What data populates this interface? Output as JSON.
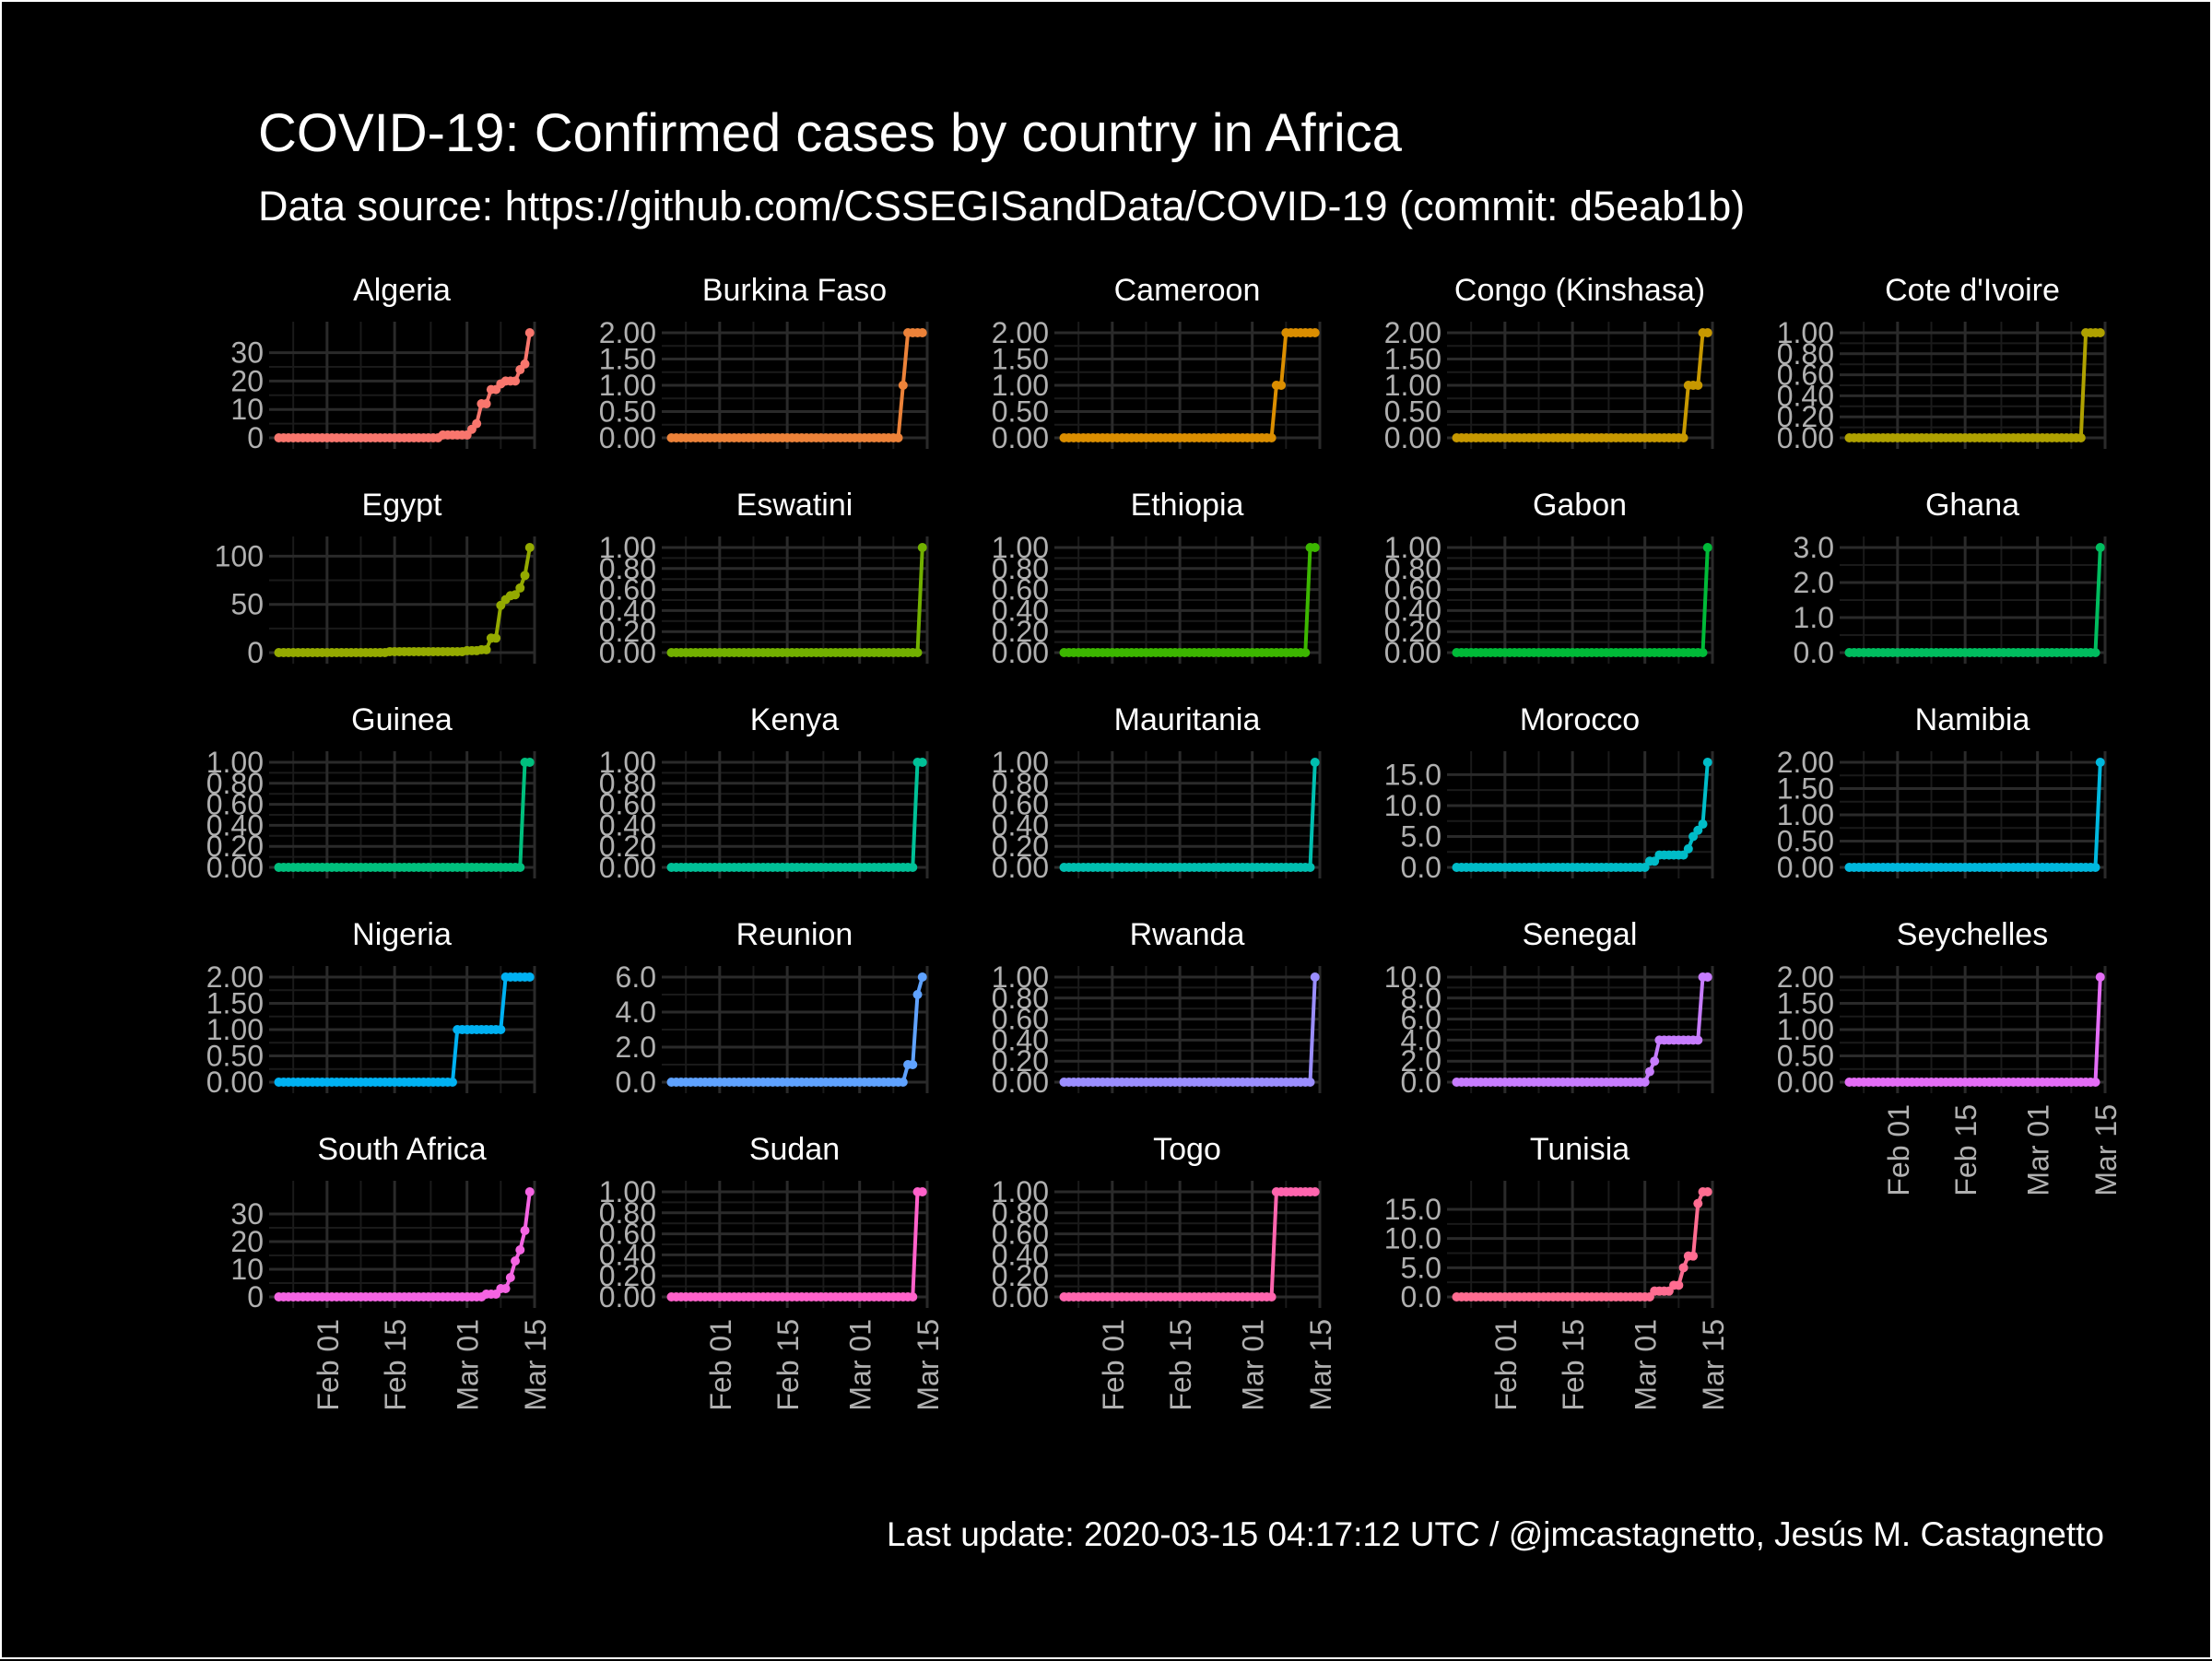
{
  "chart_data": {
    "type": "line",
    "title": "COVID-19: Confirmed cases by country in Africa",
    "subtitle": "Data source: https://github.com/CSSEGISandData/COVID-19 (commit: d5eab1b)",
    "caption": "Last update:  2020-03-15 04:17:12 UTC / @jmcastagnetto, Jesús M. Castagnetto",
    "x_start": "2020-01-22",
    "x_end": "2020-03-14",
    "xlim": [
      "2020-01-20",
      "2020-03-15"
    ],
    "x_ticks": [
      {
        "date": "2020-02-01",
        "label": "Feb 01"
      },
      {
        "date": "2020-02-15",
        "label": "Feb 15"
      },
      {
        "date": "2020-03-01",
        "label": "Mar 01"
      },
      {
        "date": "2020-03-15",
        "label": "Mar 15"
      }
    ],
    "grid": true,
    "legend": "none",
    "panels": [
      {
        "name": "Algeria",
        "color": "#F8766D",
        "ylim": [
          0,
          37
        ],
        "yticks": [
          0,
          10,
          20,
          30
        ],
        "ytick_labels": [
          "0",
          "10",
          "20",
          "30"
        ],
        "points": [
          [
            "2020-02-25",
            1
          ],
          [
            "2020-03-02",
            3
          ],
          [
            "2020-03-03",
            5
          ],
          [
            "2020-03-04",
            12
          ],
          [
            "2020-03-05",
            12
          ],
          [
            "2020-03-06",
            17
          ],
          [
            "2020-03-07",
            17
          ],
          [
            "2020-03-08",
            19
          ],
          [
            "2020-03-09",
            20
          ],
          [
            "2020-03-10",
            20
          ],
          [
            "2020-03-11",
            20
          ],
          [
            "2020-03-12",
            24
          ],
          [
            "2020-03-13",
            26
          ],
          [
            "2020-03-14",
            37
          ]
        ]
      },
      {
        "name": "Burkina Faso",
        "color": "#EC8239",
        "ylim": [
          0,
          2
        ],
        "yticks": [
          0,
          0.5,
          1,
          1.5,
          2
        ],
        "ytick_labels": [
          "0.00",
          "0.50",
          "1.00",
          "1.50",
          "2.00"
        ],
        "points": [
          [
            "2020-03-10",
            1
          ],
          [
            "2020-03-11",
            2
          ],
          [
            "2020-03-12",
            2
          ],
          [
            "2020-03-13",
            2
          ],
          [
            "2020-03-14",
            2
          ]
        ]
      },
      {
        "name": "Cameroon",
        "color": "#DB8E00",
        "ylim": [
          0,
          2
        ],
        "yticks": [
          0,
          0.5,
          1,
          1.5,
          2
        ],
        "ytick_labels": [
          "0.00",
          "0.50",
          "1.00",
          "1.50",
          "2.00"
        ],
        "points": [
          [
            "2020-03-06",
            1
          ],
          [
            "2020-03-07",
            1
          ],
          [
            "2020-03-08",
            2
          ],
          [
            "2020-03-09",
            2
          ],
          [
            "2020-03-10",
            2
          ],
          [
            "2020-03-11",
            2
          ],
          [
            "2020-03-12",
            2
          ],
          [
            "2020-03-13",
            2
          ],
          [
            "2020-03-14",
            2
          ]
        ]
      },
      {
        "name": "Congo (Kinshasa)",
        "color": "#C79800",
        "ylim": [
          0,
          2
        ],
        "yticks": [
          0,
          0.5,
          1,
          1.5,
          2
        ],
        "ytick_labels": [
          "0.00",
          "0.50",
          "1.00",
          "1.50",
          "2.00"
        ],
        "points": [
          [
            "2020-03-10",
            1
          ],
          [
            "2020-03-11",
            1
          ],
          [
            "2020-03-12",
            1
          ],
          [
            "2020-03-13",
            2
          ],
          [
            "2020-03-14",
            2
          ]
        ]
      },
      {
        "name": "Cote d'Ivoire",
        "color": "#AFA100",
        "ylim": [
          0,
          1
        ],
        "yticks": [
          0,
          0.2,
          0.4,
          0.6,
          0.8,
          1
        ],
        "ytick_labels": [
          "0.00",
          "0.20",
          "0.40",
          "0.60",
          "0.80",
          "1.00"
        ],
        "points": [
          [
            "2020-03-11",
            1
          ],
          [
            "2020-03-12",
            1
          ],
          [
            "2020-03-13",
            1
          ],
          [
            "2020-03-14",
            1
          ]
        ]
      },
      {
        "name": "Egypt",
        "color": "#94AA00",
        "ylim": [
          0,
          109
        ],
        "yticks": [
          0,
          50,
          100
        ],
        "ytick_labels": [
          "0",
          "50",
          "100"
        ],
        "points": [
          [
            "2020-02-14",
            1
          ],
          [
            "2020-03-01",
            2
          ],
          [
            "2020-03-04",
            3
          ],
          [
            "2020-03-06",
            15
          ],
          [
            "2020-03-07",
            15
          ],
          [
            "2020-03-08",
            49
          ],
          [
            "2020-03-09",
            55
          ],
          [
            "2020-03-10",
            59
          ],
          [
            "2020-03-11",
            60
          ],
          [
            "2020-03-12",
            67
          ],
          [
            "2020-03-13",
            80
          ],
          [
            "2020-03-14",
            109
          ]
        ]
      },
      {
        "name": "Eswatini",
        "color": "#72B000",
        "ylim": [
          0,
          1
        ],
        "yticks": [
          0,
          0.2,
          0.4,
          0.6,
          0.8,
          1
        ],
        "ytick_labels": [
          "0.00",
          "0.20",
          "0.40",
          "0.60",
          "0.80",
          "1.00"
        ],
        "points": [
          [
            "2020-03-14",
            1
          ]
        ]
      },
      {
        "name": "Ethiopia",
        "color": "#3CB600",
        "ylim": [
          0,
          1
        ],
        "yticks": [
          0,
          0.2,
          0.4,
          0.6,
          0.8,
          1
        ],
        "ytick_labels": [
          "0.00",
          "0.20",
          "0.40",
          "0.60",
          "0.80",
          "1.00"
        ],
        "points": [
          [
            "2020-03-13",
            1
          ],
          [
            "2020-03-14",
            1
          ]
        ]
      },
      {
        "name": "Gabon",
        "color": "#00BA38",
        "ylim": [
          0,
          1
        ],
        "yticks": [
          0,
          0.2,
          0.4,
          0.6,
          0.8,
          1
        ],
        "ytick_labels": [
          "0.00",
          "0.20",
          "0.40",
          "0.60",
          "0.80",
          "1.00"
        ],
        "points": [
          [
            "2020-03-14",
            1
          ]
        ]
      },
      {
        "name": "Ghana",
        "color": "#00BD5F",
        "ylim": [
          0,
          3
        ],
        "yticks": [
          0,
          1,
          2,
          3
        ],
        "ytick_labels": [
          "0.0",
          "1.0",
          "2.0",
          "3.0"
        ],
        "points": [
          [
            "2020-03-14",
            3
          ]
        ]
      },
      {
        "name": "Guinea",
        "color": "#00BF7D",
        "ylim": [
          0,
          1
        ],
        "yticks": [
          0,
          0.2,
          0.4,
          0.6,
          0.8,
          1
        ],
        "ytick_labels": [
          "0.00",
          "0.20",
          "0.40",
          "0.60",
          "0.80",
          "1.00"
        ],
        "points": [
          [
            "2020-03-13",
            1
          ],
          [
            "2020-03-14",
            1
          ]
        ]
      },
      {
        "name": "Kenya",
        "color": "#00C097",
        "ylim": [
          0,
          1
        ],
        "yticks": [
          0,
          0.2,
          0.4,
          0.6,
          0.8,
          1
        ],
        "ytick_labels": [
          "0.00",
          "0.20",
          "0.40",
          "0.60",
          "0.80",
          "1.00"
        ],
        "points": [
          [
            "2020-03-13",
            1
          ],
          [
            "2020-03-14",
            1
          ]
        ]
      },
      {
        "name": "Mauritania",
        "color": "#00BFB0",
        "ylim": [
          0,
          1
        ],
        "yticks": [
          0,
          0.2,
          0.4,
          0.6,
          0.8,
          1
        ],
        "ytick_labels": [
          "0.00",
          "0.20",
          "0.40",
          "0.60",
          "0.80",
          "1.00"
        ],
        "points": [
          [
            "2020-03-14",
            1
          ]
        ]
      },
      {
        "name": "Morocco",
        "color": "#00BCC8",
        "ylim": [
          0,
          17
        ],
        "yticks": [
          0,
          5,
          10,
          15
        ],
        "ytick_labels": [
          "0.0",
          "5.0",
          "10.0",
          "15.0"
        ],
        "points": [
          [
            "2020-03-02",
            1
          ],
          [
            "2020-03-03",
            1
          ],
          [
            "2020-03-04",
            2
          ],
          [
            "2020-03-05",
            2
          ],
          [
            "2020-03-06",
            2
          ],
          [
            "2020-03-07",
            2
          ],
          [
            "2020-03-08",
            2
          ],
          [
            "2020-03-09",
            2
          ],
          [
            "2020-03-10",
            3
          ],
          [
            "2020-03-11",
            5
          ],
          [
            "2020-03-12",
            6
          ],
          [
            "2020-03-13",
            7
          ],
          [
            "2020-03-14",
            17
          ]
        ]
      },
      {
        "name": "Namibia",
        "color": "#00B8DE",
        "ylim": [
          0,
          2
        ],
        "yticks": [
          0,
          0.5,
          1,
          1.5,
          2
        ],
        "ytick_labels": [
          "0.00",
          "0.50",
          "1.00",
          "1.50",
          "2.00"
        ],
        "points": [
          [
            "2020-03-14",
            2
          ]
        ]
      },
      {
        "name": "Nigeria",
        "color": "#00B1F2",
        "ylim": [
          0,
          2
        ],
        "yticks": [
          0,
          0.5,
          1,
          1.5,
          2
        ],
        "ytick_labels": [
          "0.00",
          "0.50",
          "1.00",
          "1.50",
          "2.00"
        ],
        "points": [
          [
            "2020-02-28",
            1
          ],
          [
            "2020-02-29",
            1
          ],
          [
            "2020-03-01",
            1
          ],
          [
            "2020-03-02",
            1
          ],
          [
            "2020-03-03",
            1
          ],
          [
            "2020-03-04",
            1
          ],
          [
            "2020-03-05",
            1
          ],
          [
            "2020-03-06",
            1
          ],
          [
            "2020-03-07",
            1
          ],
          [
            "2020-03-08",
            1
          ],
          [
            "2020-03-09",
            2
          ],
          [
            "2020-03-10",
            2
          ],
          [
            "2020-03-11",
            2
          ],
          [
            "2020-03-12",
            2
          ],
          [
            "2020-03-13",
            2
          ],
          [
            "2020-03-14",
            2
          ]
        ]
      },
      {
        "name": "Reunion",
        "color": "#5FA2FF",
        "ylim": [
          0,
          6
        ],
        "yticks": [
          0,
          2,
          4,
          6
        ],
        "ytick_labels": [
          "0.0",
          "2.0",
          "4.0",
          "6.0"
        ],
        "points": [
          [
            "2020-03-11",
            1
          ],
          [
            "2020-03-12",
            1
          ],
          [
            "2020-03-13",
            5
          ],
          [
            "2020-03-14",
            6
          ]
        ]
      },
      {
        "name": "Rwanda",
        "color": "#9B8EFF",
        "ylim": [
          0,
          1
        ],
        "yticks": [
          0,
          0.2,
          0.4,
          0.6,
          0.8,
          1
        ],
        "ytick_labels": [
          "0.00",
          "0.20",
          "0.40",
          "0.60",
          "0.80",
          "1.00"
        ],
        "points": [
          [
            "2020-03-14",
            1
          ]
        ]
      },
      {
        "name": "Senegal",
        "color": "#C77CFF",
        "ylim": [
          0,
          10
        ],
        "yticks": [
          0,
          2,
          4,
          6,
          8,
          10
        ],
        "ytick_labels": [
          "0.0",
          "2.0",
          "4.0",
          "6.0",
          "8.0",
          "10.0"
        ],
        "points": [
          [
            "2020-03-02",
            1
          ],
          [
            "2020-03-03",
            2
          ],
          [
            "2020-03-04",
            4
          ],
          [
            "2020-03-05",
            4
          ],
          [
            "2020-03-06",
            4
          ],
          [
            "2020-03-07",
            4
          ],
          [
            "2020-03-08",
            4
          ],
          [
            "2020-03-09",
            4
          ],
          [
            "2020-03-10",
            4
          ],
          [
            "2020-03-11",
            4
          ],
          [
            "2020-03-12",
            4
          ],
          [
            "2020-03-13",
            10
          ],
          [
            "2020-03-14",
            10
          ]
        ]
      },
      {
        "name": "Seychelles",
        "color": "#E46DF6",
        "ylim": [
          0,
          2
        ],
        "yticks": [
          0,
          0.5,
          1,
          1.5,
          2
        ],
        "ytick_labels": [
          "0.00",
          "0.50",
          "1.00",
          "1.50",
          "2.00"
        ],
        "points": [
          [
            "2020-03-14",
            2
          ]
        ]
      },
      {
        "name": "South Africa",
        "color": "#F564E3",
        "ylim": [
          0,
          38
        ],
        "yticks": [
          0,
          10,
          20,
          30
        ],
        "ytick_labels": [
          "0",
          "10",
          "20",
          "30"
        ],
        "points": [
          [
            "2020-03-05",
            1
          ],
          [
            "2020-03-06",
            1
          ],
          [
            "2020-03-07",
            1
          ],
          [
            "2020-03-08",
            3
          ],
          [
            "2020-03-09",
            3
          ],
          [
            "2020-03-10",
            7
          ],
          [
            "2020-03-11",
            13
          ],
          [
            "2020-03-12",
            17
          ],
          [
            "2020-03-13",
            24
          ],
          [
            "2020-03-14",
            38
          ]
        ]
      },
      {
        "name": "Sudan",
        "color": "#FF61CA",
        "ylim": [
          0,
          1
        ],
        "yticks": [
          0,
          0.2,
          0.4,
          0.6,
          0.8,
          1
        ],
        "ytick_labels": [
          "0.00",
          "0.20",
          "0.40",
          "0.60",
          "0.80",
          "1.00"
        ],
        "points": [
          [
            "2020-03-13",
            1
          ],
          [
            "2020-03-14",
            1
          ]
        ]
      },
      {
        "name": "Togo",
        "color": "#FF65AE",
        "ylim": [
          0,
          1
        ],
        "yticks": [
          0,
          0.2,
          0.4,
          0.6,
          0.8,
          1
        ],
        "ytick_labels": [
          "0.00",
          "0.20",
          "0.40",
          "0.60",
          "0.80",
          "1.00"
        ],
        "points": [
          [
            "2020-03-06",
            1
          ],
          [
            "2020-03-07",
            1
          ],
          [
            "2020-03-08",
            1
          ],
          [
            "2020-03-09",
            1
          ],
          [
            "2020-03-10",
            1
          ],
          [
            "2020-03-11",
            1
          ],
          [
            "2020-03-12",
            1
          ],
          [
            "2020-03-13",
            1
          ],
          [
            "2020-03-14",
            1
          ]
        ]
      },
      {
        "name": "Tunisia",
        "color": "#FF6C91",
        "ylim": [
          0,
          18
        ],
        "yticks": [
          0,
          5,
          10,
          15
        ],
        "ytick_labels": [
          "0.0",
          "5.0",
          "10.0",
          "15.0"
        ],
        "points": [
          [
            "2020-03-03",
            1
          ],
          [
            "2020-03-04",
            1
          ],
          [
            "2020-03-05",
            1
          ],
          [
            "2020-03-06",
            1
          ],
          [
            "2020-03-07",
            2
          ],
          [
            "2020-03-08",
            2
          ],
          [
            "2020-03-09",
            5
          ],
          [
            "2020-03-10",
            7
          ],
          [
            "2020-03-11",
            7
          ],
          [
            "2020-03-12",
            16
          ],
          [
            "2020-03-13",
            18
          ],
          [
            "2020-03-14",
            18
          ]
        ]
      }
    ]
  }
}
